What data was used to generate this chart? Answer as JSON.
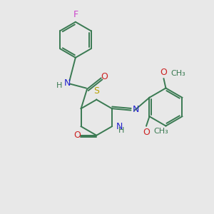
{
  "bg_color": "#e8e8e8",
  "bond_color": "#3a7a52",
  "N_color": "#2222cc",
  "O_color": "#cc2222",
  "S_color": "#b8a000",
  "F_color": "#cc44cc",
  "line_width": 1.4,
  "font_size": 9,
  "figsize": [
    3.0,
    3.0
  ],
  "dpi": 100,
  "xlim": [
    0,
    10
  ],
  "ylim": [
    0,
    10
  ]
}
